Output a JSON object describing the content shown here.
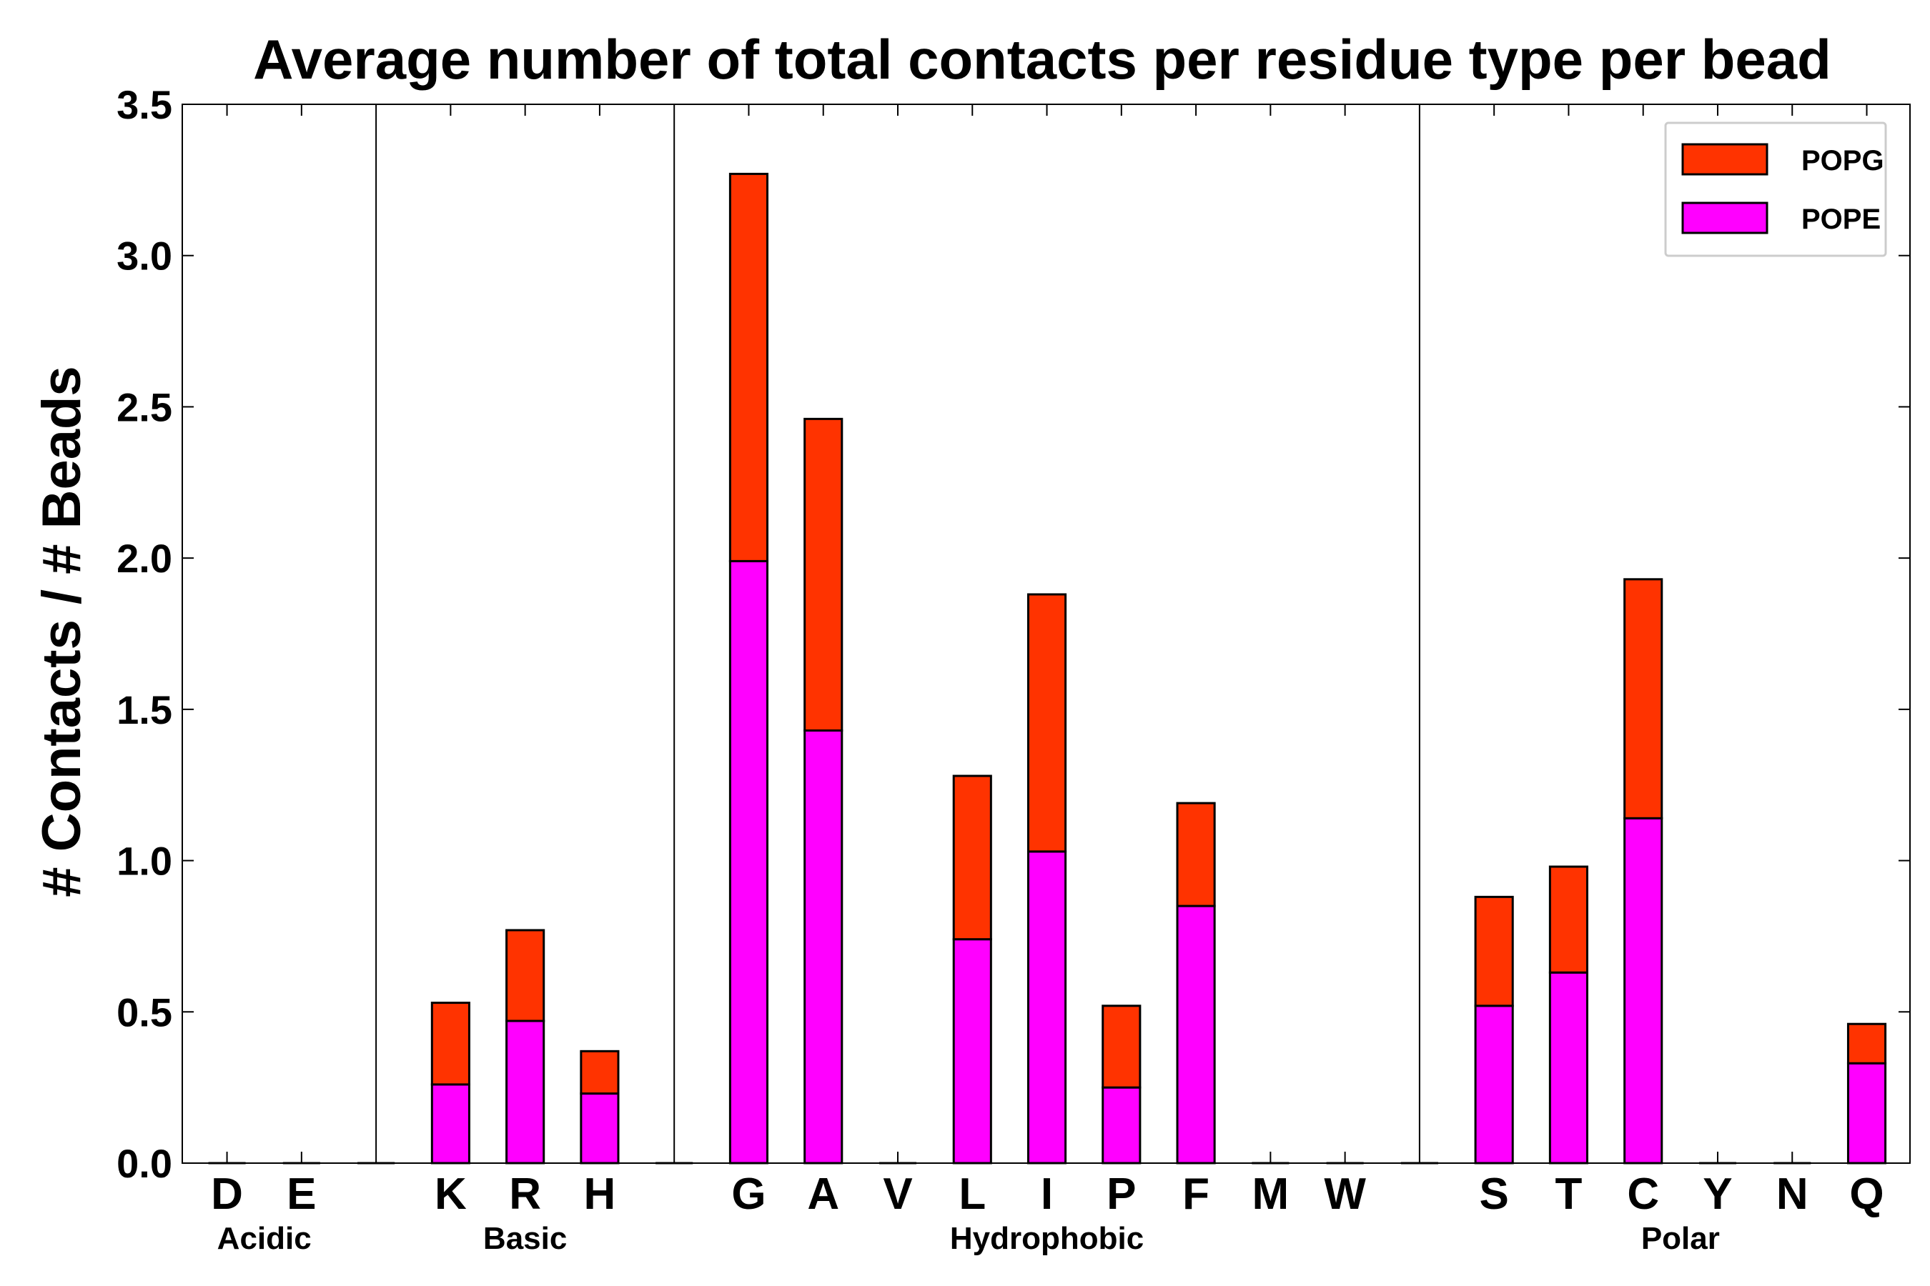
{
  "chart_data": {
    "type": "bar",
    "stacked": true,
    "title": "Average number of total contacts per residue type per bead",
    "xlabel": "",
    "ylabel": "# Contacts / # Beads",
    "ylim": [
      0,
      3.5
    ],
    "yticks": [
      "0.0",
      "0.5",
      "1.0",
      "1.5",
      "2.0",
      "2.5",
      "3.0",
      "3.5"
    ],
    "categories": [
      "D",
      "E",
      "",
      "K",
      "R",
      "H",
      "",
      "G",
      "A",
      "V",
      "L",
      "I",
      "P",
      "F",
      "M",
      "W",
      "",
      "S",
      "T",
      "C",
      "Y",
      "N",
      "Q"
    ],
    "groups": [
      {
        "label": "Acidic",
        "members": [
          "D",
          "E"
        ]
      },
      {
        "label": "Basic",
        "members": [
          "K",
          "R",
          "H"
        ]
      },
      {
        "label": "Hydrophobic",
        "members": [
          "G",
          "A",
          "V",
          "L",
          "I",
          "P",
          "F",
          "M",
          "W"
        ]
      },
      {
        "label": "Polar",
        "members": [
          "S",
          "T",
          "C",
          "Y",
          "N",
          "Q"
        ]
      }
    ],
    "series": [
      {
        "name": "POPE",
        "color": "#ff00ff",
        "values": [
          0,
          0,
          0,
          0.26,
          0.47,
          0.23,
          0,
          1.99,
          1.43,
          0,
          0.74,
          1.03,
          0.25,
          0.85,
          0,
          0,
          0,
          0.52,
          0.63,
          1.14,
          0,
          0,
          0.33
        ]
      },
      {
        "name": "POPG",
        "color": "#ff3300",
        "values": [
          0,
          0,
          0,
          0.27,
          0.3,
          0.14,
          0,
          1.28,
          1.03,
          0,
          0.54,
          0.85,
          0.27,
          0.34,
          0,
          0,
          0,
          0.36,
          0.35,
          0.79,
          0,
          0,
          0.13
        ]
      }
    ],
    "legend": {
      "position": "top-right",
      "entries": [
        "POPG",
        "POPE"
      ]
    },
    "grid": false
  }
}
